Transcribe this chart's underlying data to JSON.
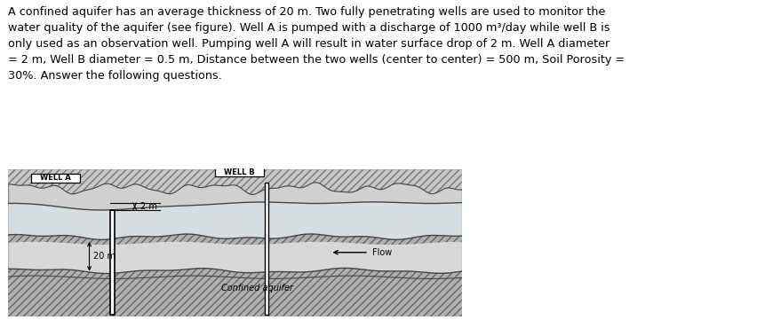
{
  "title_text": "A confined aquifer has an average thickness of 20 m. Two fully penetrating wells are used to monitor the\nwater quality of the aquifer (see figure). Well A is pumped with a discharge of 1000 m³/day while well B is\nonly used as an observation well. Pumping well A will result in water surface drop of 2 m. Well A diameter\n= 2 m, Well B diameter = 0.5 m, Distance between the two wells (center to center) = 500 m, Soil Porosity =\n30%. Answer the following questions.",
  "fig_bg": "#ffffff",
  "diagram_bg": "#d0d0d0",
  "well_label_A": "WELL A",
  "well_label_B": "WELL B",
  "label_2m": "2 m",
  "label_20m": "20 m",
  "flow_label": "Flow",
  "aquifer_label": "Confined aquifer"
}
